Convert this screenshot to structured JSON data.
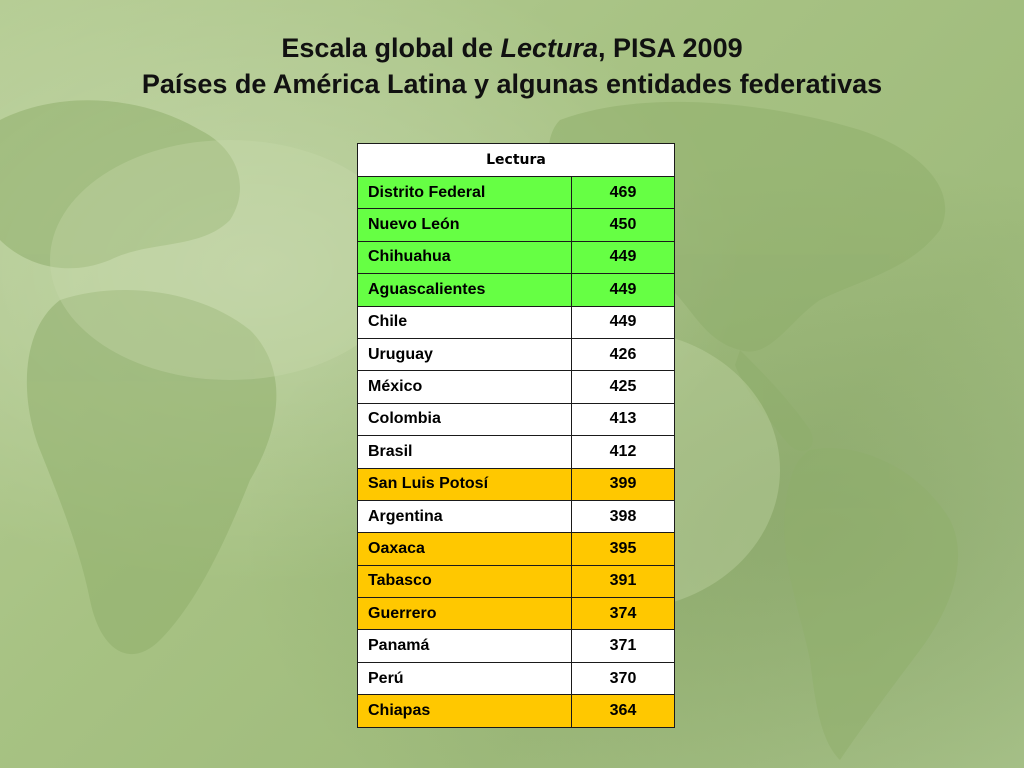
{
  "title": {
    "line1_prefix": "Escala global de ",
    "line1_italic": "Lectura",
    "line1_suffix": ", PISA 2009",
    "line2": "Países de América Latina y algunas entidades federativas"
  },
  "table": {
    "header": "Lectura",
    "colors": {
      "green": "#66ff44",
      "white": "#ffffff",
      "yellow": "#ffc800"
    },
    "rows": [
      {
        "name": "Distrito Federal",
        "score": "469",
        "color": "green"
      },
      {
        "name": "Nuevo León",
        "score": "450",
        "color": "green"
      },
      {
        "name": "Chihuahua",
        "score": "449",
        "color": "green"
      },
      {
        "name": "Aguascalientes",
        "score": "449",
        "color": "green"
      },
      {
        "name": "Chile",
        "score": "449",
        "color": "white"
      },
      {
        "name": "Uruguay",
        "score": "426",
        "color": "white"
      },
      {
        "name": "México",
        "score": "425",
        "color": "white"
      },
      {
        "name": "Colombia",
        "score": "413",
        "color": "white"
      },
      {
        "name": "Brasil",
        "score": "412",
        "color": "white"
      },
      {
        "name": "San Luis Potosí",
        "score": "399",
        "color": "yellow"
      },
      {
        "name": "Argentina",
        "score": "398",
        "color": "white"
      },
      {
        "name": "Oaxaca",
        "score": "395",
        "color": "yellow"
      },
      {
        "name": "Tabasco",
        "score": "391",
        "color": "yellow"
      },
      {
        "name": "Guerrero",
        "score": "374",
        "color": "yellow"
      },
      {
        "name": "Panamá",
        "score": "371",
        "color": "white"
      },
      {
        "name": "Perú",
        "score": "370",
        "color": "white"
      },
      {
        "name": "Chiapas",
        "score": "364",
        "color": "yellow"
      }
    ]
  }
}
